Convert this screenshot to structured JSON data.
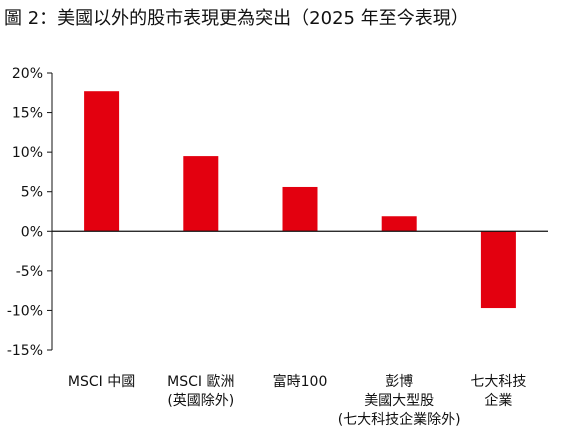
{
  "chart_data": {
    "type": "bar",
    "title": "圖 2：美國以外的股市表現更為突出（2025 年至今表現）",
    "xlabel": "",
    "ylabel": "",
    "categories": [
      [
        "MSCI 中國"
      ],
      [
        "MSCI 歐洲",
        "(英國除外)"
      ],
      [
        "富時100"
      ],
      [
        "彭博",
        "美國大型股",
        "(七大科技企業除外)"
      ],
      [
        "七大科技",
        "企業"
      ]
    ],
    "series": [
      {
        "values": [
          17.7,
          9.5,
          5.6,
          1.9,
          -9.7
        ]
      }
    ],
    "ylim": [
      -15,
      20
    ],
    "yticks": [
      20,
      15,
      10,
      5,
      0,
      -5,
      -10,
      -15
    ],
    "ytick_labels": [
      "20%",
      "15%",
      "10%",
      "5%",
      "0%",
      "-5%",
      "-10%",
      "-15%"
    ],
    "grid": false,
    "legend": "none",
    "bar_color": "#e3000f",
    "axis_color": "#111111"
  }
}
